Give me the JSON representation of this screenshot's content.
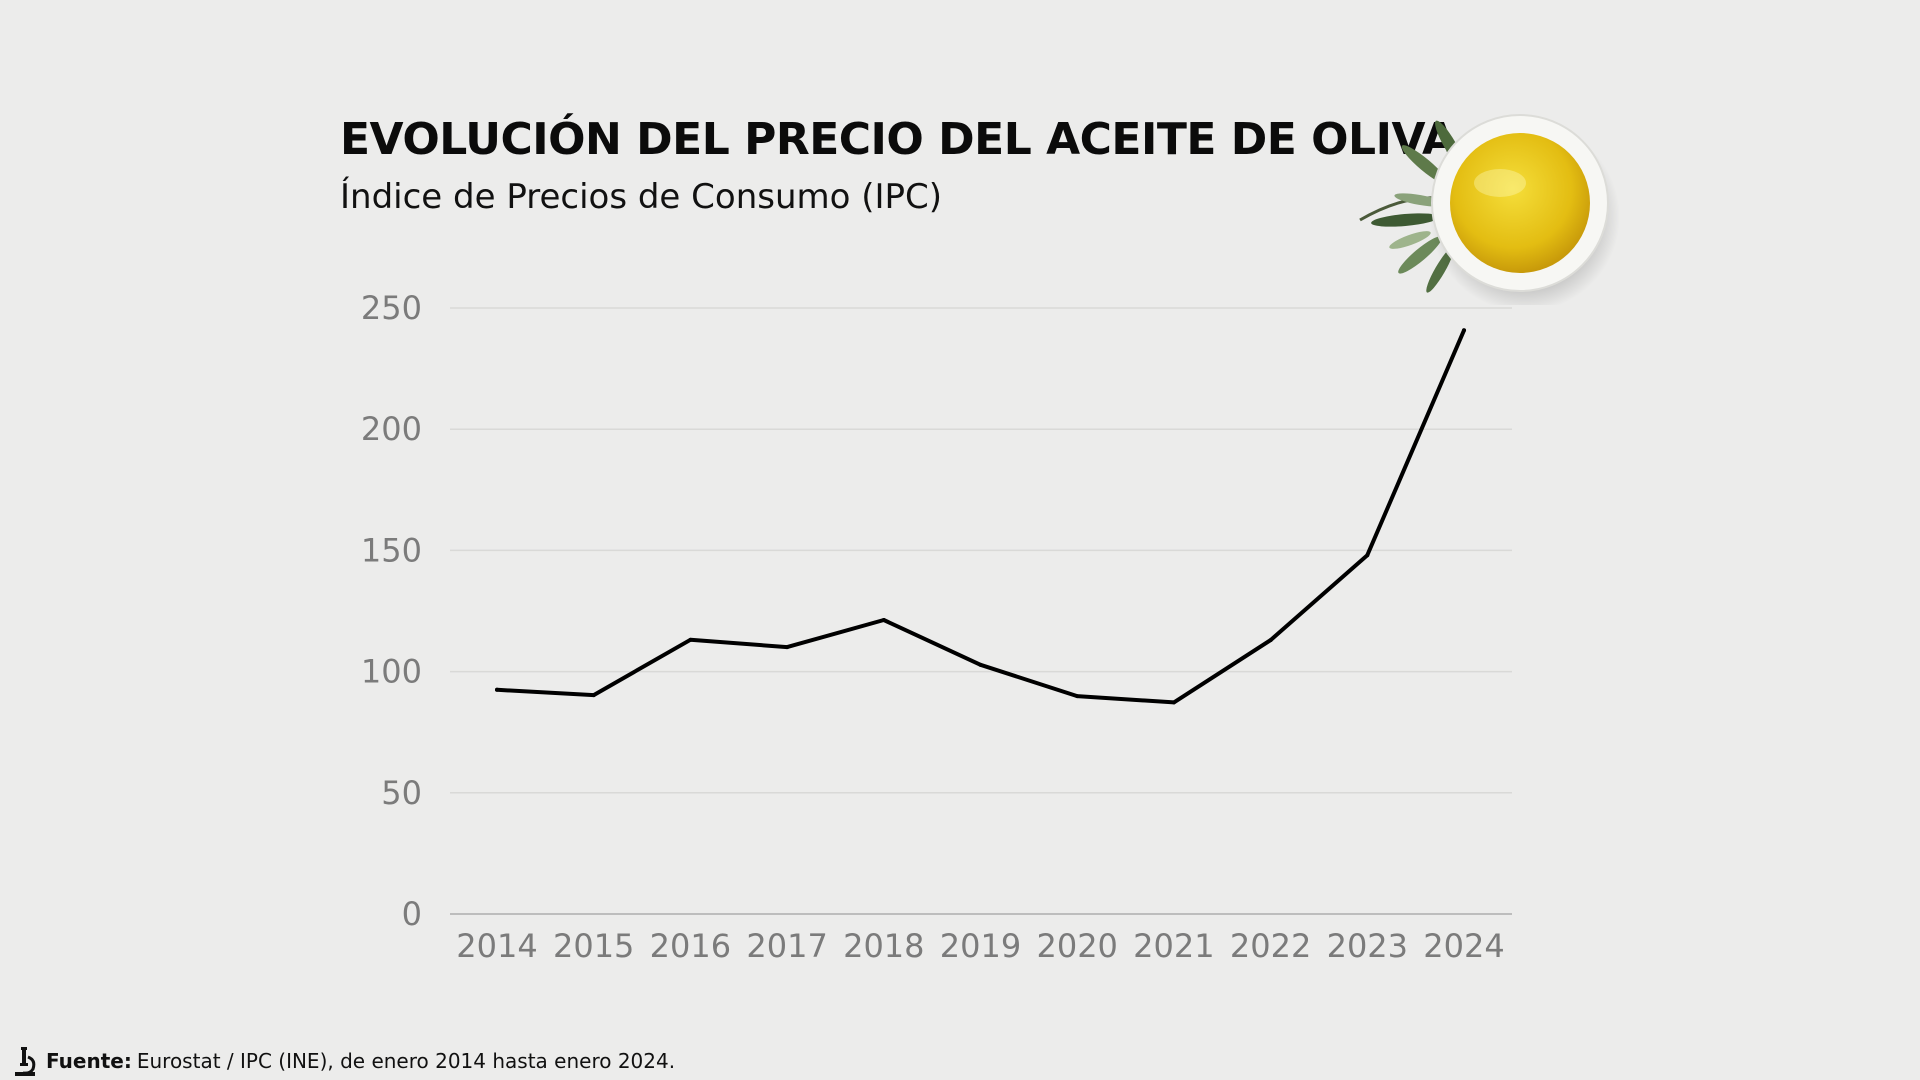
{
  "header": {
    "title": "EVOLUCIÓN DEL PRECIO DEL ACEITE DE OLIVA",
    "subtitle": "Índice de Precios de Consumo (IPC)"
  },
  "footer": {
    "label": "Fuente:",
    "text": "Eurostat / IPC (INE), de enero 2014 hasta enero 2024.",
    "icon": "microscope-icon"
  },
  "decoration": {
    "icon": "olive-oil-bowl-icon",
    "oil_color": "#e8c516"
  },
  "chart_data": {
    "type": "line",
    "title": "EVOLUCIÓN DEL PRECIO DEL ACEITE DE OLIVA",
    "subtitle": "Índice de Precios de Consumo (IPC)",
    "xlabel": "",
    "ylabel": "",
    "x": [
      "2014",
      "2015",
      "2016",
      "2017",
      "2018",
      "2019",
      "2020",
      "2021",
      "2022",
      "2023",
      "2024"
    ],
    "series": [
      {
        "values": [
          92.5,
          90.3,
          113.1,
          110.1,
          121.3,
          102.8,
          89.9,
          87.3,
          113.0,
          148.0,
          240.8
        ],
        "color": "#000000"
      }
    ],
    "yticks": [
      "0",
      "50",
      "100",
      "150",
      "200",
      "250"
    ],
    "ylim": [
      0,
      250
    ],
    "grid": "horizontal",
    "legend": "none"
  }
}
